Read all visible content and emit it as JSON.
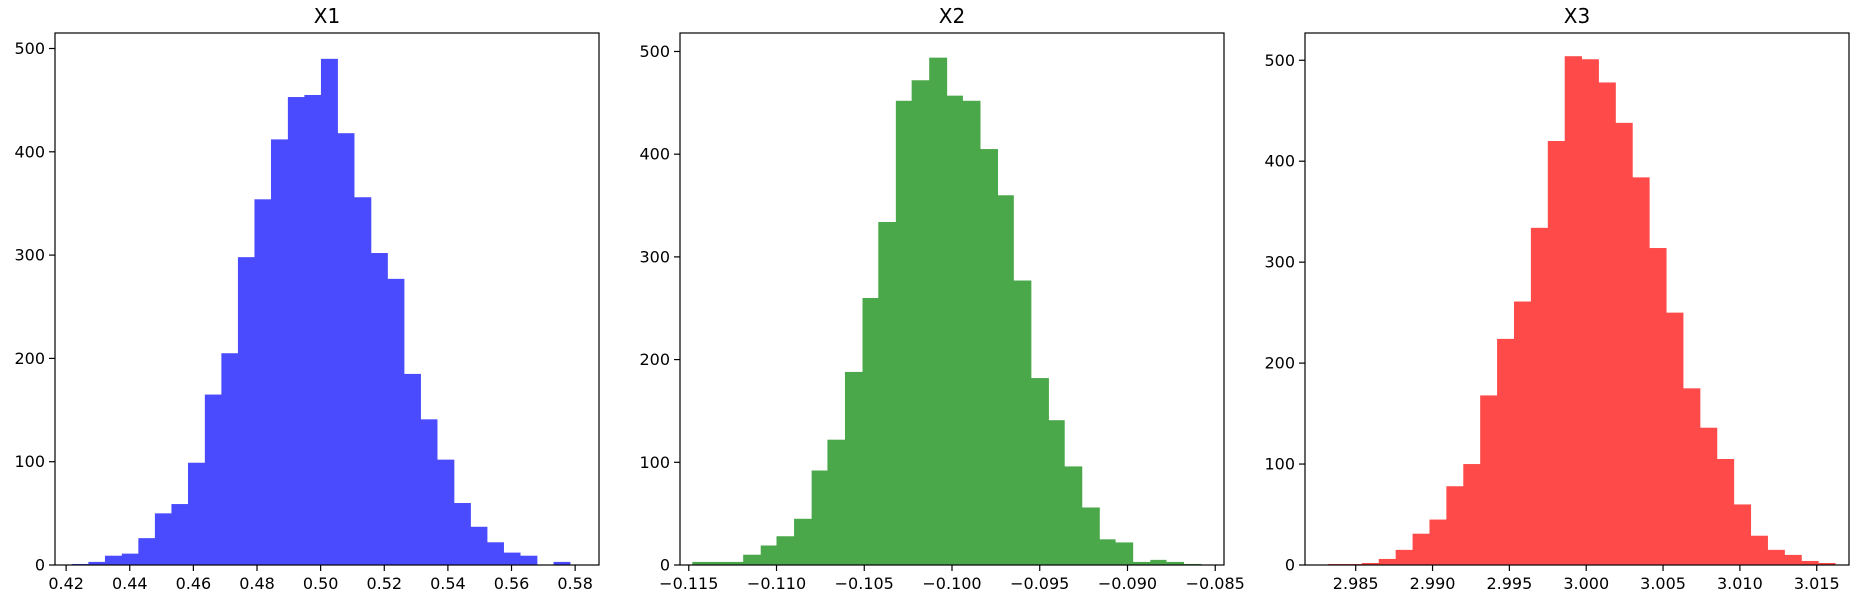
{
  "chart_data": [
    {
      "type": "bar",
      "title": "X1",
      "xlabel": "",
      "ylabel": "",
      "color": "#4a4aff",
      "xlim": [
        0.4165,
        0.5875
      ],
      "ylim": [
        0,
        515
      ],
      "grid": false,
      "xticks": [
        0.42,
        0.44,
        0.46,
        0.48,
        0.5,
        0.52,
        0.54,
        0.56,
        0.58
      ],
      "xtick_labels": [
        "0.42",
        "0.44",
        "0.46",
        "0.48",
        "0.50",
        "0.52",
        "0.54",
        "0.56",
        "0.58"
      ],
      "yticks": [
        0,
        100,
        200,
        300,
        400,
        500
      ],
      "ytick_labels": [
        "0",
        "100",
        "200",
        "300",
        "400",
        "500"
      ],
      "bin_edges": [
        0.4218,
        0.427,
        0.4322,
        0.4375,
        0.4427,
        0.4479,
        0.4531,
        0.4583,
        0.4636,
        0.4688,
        0.474,
        0.4792,
        0.4844,
        0.4897,
        0.4949,
        0.5001,
        0.5053,
        0.5105,
        0.5158,
        0.521,
        0.5262,
        0.5314,
        0.5366,
        0.5419,
        0.5471,
        0.5523,
        0.5575,
        0.5627,
        0.568,
        0.5732,
        0.5784
      ],
      "counts": [
        1,
        3,
        9,
        11,
        26,
        50,
        59,
        99,
        165,
        205,
        298,
        354,
        412,
        453,
        455,
        490,
        418,
        356,
        302,
        277,
        185,
        141,
        102,
        60,
        37,
        22,
        12,
        9,
        0,
        3
      ]
    },
    {
      "type": "bar",
      "title": "X2",
      "xlabel": "",
      "ylabel": "",
      "color": "#4aa84a",
      "xlim": [
        -0.1155,
        -0.0845
      ],
      "ylim": [
        0,
        518
      ],
      "grid": false,
      "xticks": [
        -0.115,
        -0.11,
        -0.105,
        -0.1,
        -0.095,
        -0.09,
        -0.085
      ],
      "xtick_labels": [
        "−0.115",
        "−0.110",
        "−0.105",
        "−0.100",
        "−0.095",
        "−0.090",
        "−0.085"
      ],
      "yticks": [
        0,
        100,
        200,
        300,
        400,
        500
      ],
      "ytick_labels": [
        "0",
        "100",
        "200",
        "300",
        "400",
        "500"
      ],
      "bin_edges": [
        -0.1148,
        -0.1138,
        -0.1129,
        -0.1119,
        -0.1109,
        -0.11,
        -0.109,
        -0.108,
        -0.1071,
        -0.1061,
        -0.1051,
        -0.1042,
        -0.1032,
        -0.1023,
        -0.1013,
        -0.1003,
        -0.0994,
        -0.0984,
        -0.0974,
        -0.0965,
        -0.0955,
        -0.0945,
        -0.0936,
        -0.0926,
        -0.0916,
        -0.0907,
        -0.0897,
        -0.0887,
        -0.0878,
        -0.0868,
        -0.0858
      ],
      "counts": [
        3,
        3,
        3,
        10,
        19,
        28,
        45,
        92,
        122,
        188,
        260,
        334,
        452,
        472,
        494,
        457,
        452,
        405,
        360,
        277,
        182,
        141,
        96,
        56,
        25,
        22,
        3,
        5,
        3,
        1
      ]
    },
    {
      "type": "bar",
      "title": "X3",
      "xlabel": "",
      "ylabel": "",
      "color": "#ff4a4a",
      "xlim": [
        2.9817,
        3.0171
      ],
      "ylim": [
        0,
        527
      ],
      "grid": false,
      "xticks": [
        2.985,
        2.99,
        2.995,
        3.0,
        3.005,
        3.01,
        3.015
      ],
      "xtick_labels": [
        "2.985",
        "2.990",
        "2.995",
        "3.000",
        "3.005",
        "3.010",
        "3.015"
      ],
      "yticks": [
        0,
        100,
        200,
        300,
        400,
        500
      ],
      "ytick_labels": [
        "0",
        "100",
        "200",
        "300",
        "400",
        "500"
      ],
      "bin_edges": [
        2.9832,
        2.9843,
        2.9854,
        2.9865,
        2.9876,
        2.9887,
        2.9898,
        2.9909,
        2.992,
        2.9931,
        2.9942,
        2.9953,
        2.9964,
        2.9975,
        2.9986,
        2.9997,
        3.0008,
        3.0019,
        3.003,
        3.0041,
        3.0052,
        3.0063,
        3.0074,
        3.0085,
        3.0096,
        3.0107,
        3.0118,
        3.0129,
        3.014,
        3.0151,
        3.0162
      ],
      "counts": [
        1,
        1,
        2,
        6,
        15,
        31,
        45,
        78,
        100,
        168,
        224,
        261,
        334,
        420,
        504,
        501,
        478,
        438,
        384,
        314,
        250,
        175,
        136,
        105,
        60,
        29,
        15,
        10,
        4,
        2
      ]
    }
  ]
}
